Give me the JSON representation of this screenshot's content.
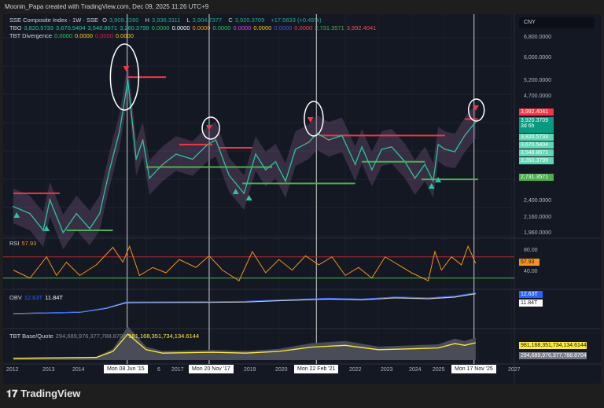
{
  "header": {
    "credit": "Moonin_Papa created with TradingView.com, Dec 09, 2025 11:26 UTC+9"
  },
  "legend": {
    "main": {
      "title": "SSE Composite Index · 1W · SSE",
      "o_label": "O",
      "o": "3,909.2260",
      "h_label": "H",
      "h": "3,936.3111",
      "l_label": "L",
      "l": "3,904.7377",
      "c_label": "C",
      "c": "3,920.3709",
      "change": "+17.5633 (+0.45%)"
    },
    "tbo": {
      "title": "TBO",
      "values": [
        {
          "v": "3,820.5733",
          "color": "#26c6a0"
        },
        {
          "v": "3,670.5404",
          "color": "#26c6a0"
        },
        {
          "v": "3,548.8671",
          "color": "#26c6a0"
        },
        {
          "v": "3,260.3799",
          "color": "#26c6a0"
        },
        {
          "v": "0.0000",
          "color": "#22c55e"
        },
        {
          "v": "0.0000",
          "color": "#ffffff"
        },
        {
          "v": "0.0000",
          "color": "#f59e0b"
        },
        {
          "v": "0.0000",
          "color": "#22c55e"
        },
        {
          "v": "0.0000",
          "color": "#d946ef"
        },
        {
          "v": "0.0000",
          "color": "#facc15"
        },
        {
          "v": "0.0000",
          "color": "#3b5bdb"
        },
        {
          "v": "0.0000",
          "color": "#ef4444"
        },
        {
          "v": "2,731.3571",
          "color": "#4caf50"
        },
        {
          "v": "3,992.4041",
          "color": "#ef5350"
        }
      ]
    },
    "tbt": {
      "title": "TBT Divergence",
      "values": [
        {
          "v": "0.0000",
          "color": "#22c55e"
        },
        {
          "v": "0.0000",
          "color": "#facc15"
        },
        {
          "v": "0.0000",
          "color": "#e11d48"
        },
        {
          "v": "0.0000",
          "color": "#facc15"
        }
      ]
    },
    "rsi": {
      "title": "RSI",
      "value": "57.93"
    },
    "obv": {
      "title": "OBV",
      "v1": "12.63T",
      "v2": "11.84T"
    },
    "base": {
      "title": "TBT Base/Quote",
      "v1": "294,689,976,377,788.8704",
      "v2": "981,168,351,734,134.6144"
    }
  },
  "price_axis": {
    "currency": "CNY",
    "ticks": [
      "6,800.0000",
      "6,000.0000",
      "5,200.0000",
      "4,700.0000",
      "2,400.0000",
      "2,160.0000",
      "1,960.0000"
    ],
    "badges": [
      {
        "v": "3,992.4041",
        "color": "#f23645"
      },
      {
        "v": "3,920.3709",
        "sub": "3d 6h",
        "color": "#089981"
      },
      {
        "v": "3,820.5733",
        "color": "#5fd6b4"
      },
      {
        "v": "3,670.5404",
        "color": "#5fd6b4"
      },
      {
        "v": "3,548.8671",
        "color": "#5fd6b4"
      },
      {
        "v": "3,260.3799",
        "color": "#5fd6b4"
      },
      {
        "v": "2,731.3571",
        "color": "#4caf50"
      }
    ]
  },
  "rsi_axis": {
    "ticks": [
      "80.00",
      "40.00"
    ],
    "badge": "57.93"
  },
  "obv_axis": {
    "b1": "12.63T",
    "b2": "11.84T"
  },
  "base_axis": {
    "b1": "981,168,351,734,134.6144",
    "b2": "294,689,976,377,788.8704"
  },
  "time_axis": {
    "years": [
      "2012",
      "2013",
      "2014",
      "6",
      "2017",
      "2019",
      "2020",
      "2022",
      "2023",
      "2024",
      "2025",
      "2027"
    ],
    "markers": [
      "Mon 08 Jun '15",
      "Mon 20 Nov '17",
      "Mon 22 Feb '21",
      "Mon 17 Nov '25"
    ]
  },
  "footer": {
    "logo": "TradingView"
  },
  "chart_data": [
    {
      "type": "line",
      "title": "SSE Composite Index · 1W · SSE",
      "scale": "log",
      "ylim": [
        1900,
        7200
      ],
      "xlim": [
        2011.9,
        2027.2
      ],
      "x": [
        2012.0,
        2012.5,
        2012.9,
        2013.1,
        2013.5,
        2013.9,
        2014.3,
        2014.6,
        2014.9,
        2015.2,
        2015.45,
        2015.6,
        2015.7,
        2015.9,
        2016.1,
        2016.5,
        2016.9,
        2017.4,
        2017.85,
        2018.1,
        2018.5,
        2018.95,
        2019.3,
        2019.6,
        2019.9,
        2020.2,
        2020.5,
        2020.9,
        2021.15,
        2021.5,
        2021.9,
        2022.3,
        2022.5,
        2022.8,
        2023.1,
        2023.4,
        2023.8,
        2024.1,
        2024.4,
        2024.65,
        2024.8,
        2025.0,
        2025.3,
        2025.6,
        2025.93
      ],
      "y": [
        2300,
        2200,
        1980,
        2400,
        1950,
        2200,
        2000,
        2200,
        2900,
        3700,
        5100,
        3800,
        3100,
        3500,
        2750,
        3000,
        3200,
        3100,
        3400,
        3500,
        2800,
        2500,
        3200,
        2900,
        3050,
        2700,
        3300,
        3450,
        3650,
        3500,
        3600,
        3000,
        3350,
        2900,
        3300,
        3350,
        3050,
        2750,
        3000,
        2700,
        3400,
        3300,
        3250,
        3600,
        3920
      ],
      "resistance_levels": [
        5200,
        3400,
        3330,
        3600,
        3992.4041
      ],
      "support_levels": [
        1980,
        2950,
        2660,
        2731.3571
      ]
    },
    {
      "type": "line",
      "title": "RSI",
      "ylim": [
        15,
        100
      ],
      "bands": [
        70,
        30
      ],
      "x": [
        2012,
        2012.5,
        2013,
        2013.3,
        2013.6,
        2014,
        2014.5,
        2015,
        2015.3,
        2015.5,
        2015.8,
        2016.2,
        2016.6,
        2017,
        2017.5,
        2017.9,
        2018.3,
        2018.8,
        2019.2,
        2019.6,
        2020,
        2020.4,
        2020.8,
        2021.2,
        2021.6,
        2022,
        2022.4,
        2022.8,
        2023.2,
        2023.6,
        2024,
        2024.5,
        2024.7,
        2024.9,
        2025.2,
        2025.5,
        2025.7,
        2025.93
      ],
      "y": [
        45,
        30,
        70,
        35,
        60,
        35,
        55,
        88,
        60,
        90,
        35,
        50,
        40,
        65,
        50,
        72,
        45,
        25,
        80,
        40,
        65,
        45,
        72,
        55,
        70,
        35,
        50,
        30,
        70,
        55,
        40,
        25,
        80,
        45,
        70,
        55,
        90,
        57.93
      ]
    },
    {
      "type": "line",
      "title": "OBV",
      "x": [
        2012,
        2014,
        2014.8,
        2015.4,
        2016,
        2018,
        2019,
        2020,
        2021.5,
        2022.5,
        2023.5,
        2024.5,
        2025.3,
        2025.93
      ],
      "y": [
        0.5,
        1.3,
        3.8,
        7.2,
        7.3,
        7.4,
        7.6,
        8.4,
        9.4,
        8.9,
        10.1,
        9.6,
        10.6,
        12.63
      ]
    },
    {
      "type": "area",
      "title": "TBT Base/Quote",
      "x": [
        2012,
        2014.5,
        2015,
        2015.45,
        2016,
        2016.5,
        2018,
        2019,
        2020,
        2021,
        2022,
        2023,
        2024,
        2024.8,
        2025.3,
        2025.6,
        2025.93
      ],
      "y": [
        0.1,
        0.15,
        0.5,
        1.5,
        0.6,
        0.4,
        0.45,
        0.4,
        0.5,
        0.75,
        0.85,
        0.6,
        0.65,
        0.7,
        0.95,
        0.85,
        1.0
      ]
    }
  ]
}
